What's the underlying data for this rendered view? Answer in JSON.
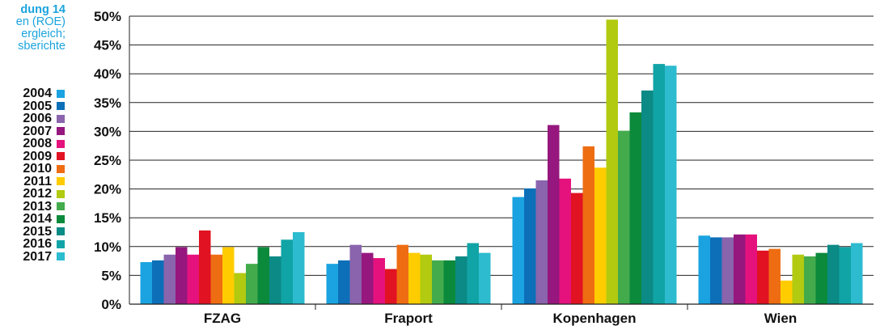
{
  "caption": {
    "title": "dung 14",
    "lines": [
      "en (ROE)",
      "ergleich;",
      "sberichte"
    ]
  },
  "colors": {
    "2004": "#1aa3e0",
    "2005": "#0d6fb8",
    "2006": "#8a64ac",
    "2007": "#96177e",
    "2008": "#e5127d",
    "2009": "#e11221",
    "2010": "#ee6d13",
    "2011": "#ffcc00",
    "2012": "#b2ca10",
    "2013": "#43ab4c",
    "2014": "#0b8a3b",
    "2015": "#0b8a86",
    "2016": "#11a4a6",
    "2017": "#2cbbcf"
  },
  "chart_data": {
    "type": "bar",
    "categories": [
      "FZAG",
      "Fraport",
      "Kopenhagen",
      "Wien"
    ],
    "ylim": [
      0,
      50
    ],
    "ytick_values": [
      0,
      5,
      10,
      15,
      20,
      25,
      30,
      35,
      40,
      45,
      50
    ],
    "ytick_labels": [
      "0%",
      "5%",
      "10%",
      "15%",
      "20%",
      "25%",
      "30%",
      "35%",
      "40%",
      "45%",
      "50%"
    ],
    "grid": true,
    "legend_position": "left",
    "series": [
      {
        "name": "2004",
        "values": [
          7.3,
          7.0,
          18.6,
          11.9
        ]
      },
      {
        "name": "2005",
        "values": [
          7.6,
          7.6,
          20.1,
          11.6
        ]
      },
      {
        "name": "2006",
        "values": [
          8.6,
          10.3,
          21.5,
          11.6
        ]
      },
      {
        "name": "2007",
        "values": [
          9.9,
          8.9,
          31.1,
          12.1
        ]
      },
      {
        "name": "2008",
        "values": [
          8.6,
          8.0,
          21.8,
          12.1
        ]
      },
      {
        "name": "2009",
        "values": [
          12.8,
          6.1,
          19.3,
          9.3
        ]
      },
      {
        "name": "2010",
        "values": [
          8.6,
          10.3,
          27.4,
          9.6
        ]
      },
      {
        "name": "2011",
        "values": [
          9.9,
          8.9,
          23.7,
          4.1
        ]
      },
      {
        "name": "2012",
        "values": [
          5.4,
          8.6,
          49.4,
          8.6
        ]
      },
      {
        "name": "2013",
        "values": [
          7.0,
          7.6,
          30.1,
          8.3
        ]
      },
      {
        "name": "2014",
        "values": [
          9.9,
          7.6,
          33.3,
          8.9
        ]
      },
      {
        "name": "2015",
        "values": [
          8.3,
          8.3,
          37.1,
          10.3
        ]
      },
      {
        "name": "2016",
        "values": [
          11.2,
          10.6,
          41.7,
          9.9
        ]
      },
      {
        "name": "2017",
        "values": [
          12.5,
          8.9,
          41.4,
          10.6
        ]
      }
    ]
  }
}
